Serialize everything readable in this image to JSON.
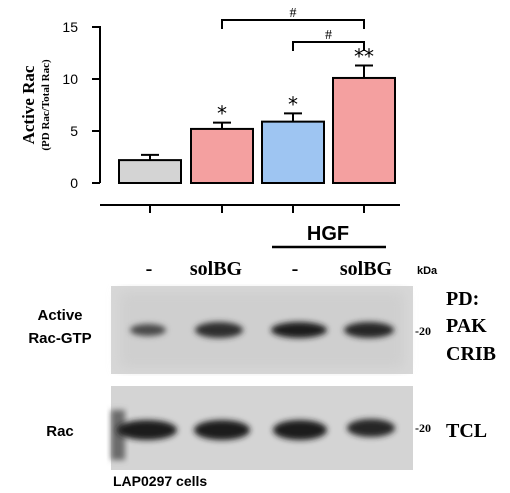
{
  "chart_data": {
    "type": "bar",
    "ylabel": "Active Rac",
    "ylabel_sub": "(PD Rac/Total Rac)",
    "ylim": [
      0,
      15
    ],
    "yticks": [
      "0",
      "5",
      "10",
      "15"
    ],
    "bars": [
      {
        "value": 2.2,
        "error": 0.5,
        "color": "#d4d4d4",
        "mark": ""
      },
      {
        "value": 5.2,
        "error": 0.6,
        "color": "#f4a0a0",
        "mark": "*"
      },
      {
        "value": 5.9,
        "error": 0.8,
        "color": "#9ec5f2",
        "mark": "*"
      },
      {
        "value": 10.1,
        "error": 1.2,
        "color": "#f4a0a0",
        "mark": "**"
      }
    ],
    "comparisons": [
      {
        "from": 1,
        "to": 3,
        "mark": "#"
      },
      {
        "from": 2,
        "to": 3,
        "mark": "#"
      }
    ]
  },
  "treatment": {
    "group_label": "HGF",
    "lanes": [
      "-",
      "solBG",
      "-",
      "solBG"
    ],
    "kda_label": "kDa"
  },
  "blots": [
    {
      "label_line1": "Active",
      "label_line2": "Rac-GTP",
      "marker": "-20",
      "right_line1": "PD:",
      "right_line2": "PAK",
      "right_line3": "CRIB"
    },
    {
      "label_line1": "Rac",
      "label_line2": "",
      "marker": "-20",
      "right_line1": "TCL",
      "right_line2": "",
      "right_line3": ""
    }
  ],
  "caption": "LAP0297 cells"
}
